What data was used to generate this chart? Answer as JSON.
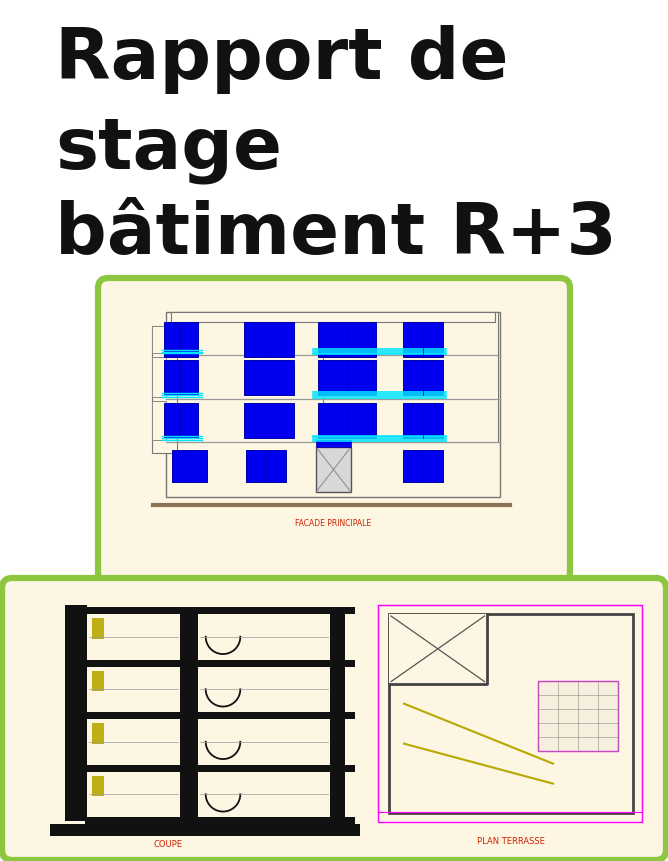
{
  "title_line1": "Rapport de",
  "title_line2": "stage",
  "title_line3": "bâtiment R+3",
  "title_fontsize": 52,
  "title_color": "#111111",
  "bg_color": "#ffffff",
  "box_border_color": "#8dc63f",
  "facade_bg": "#fdf6e3",
  "window_blue": "#0000ee",
  "window_cyan": "#00e5ff",
  "label_facade": "FACADE PRINCIPALE",
  "label_coupe": "COUPE",
  "label_plan": "PLAN TERRASSE",
  "label_color_red": "#cc2200",
  "cad_bg": "#fdf6e3",
  "line_black": "#111111",
  "coupe_yellow": "#b8a800",
  "plan_pink": "#ff00ff",
  "plan_yellow": "#b8a800",
  "gray_line": "#666666",
  "brown_ground": "#8B7355"
}
